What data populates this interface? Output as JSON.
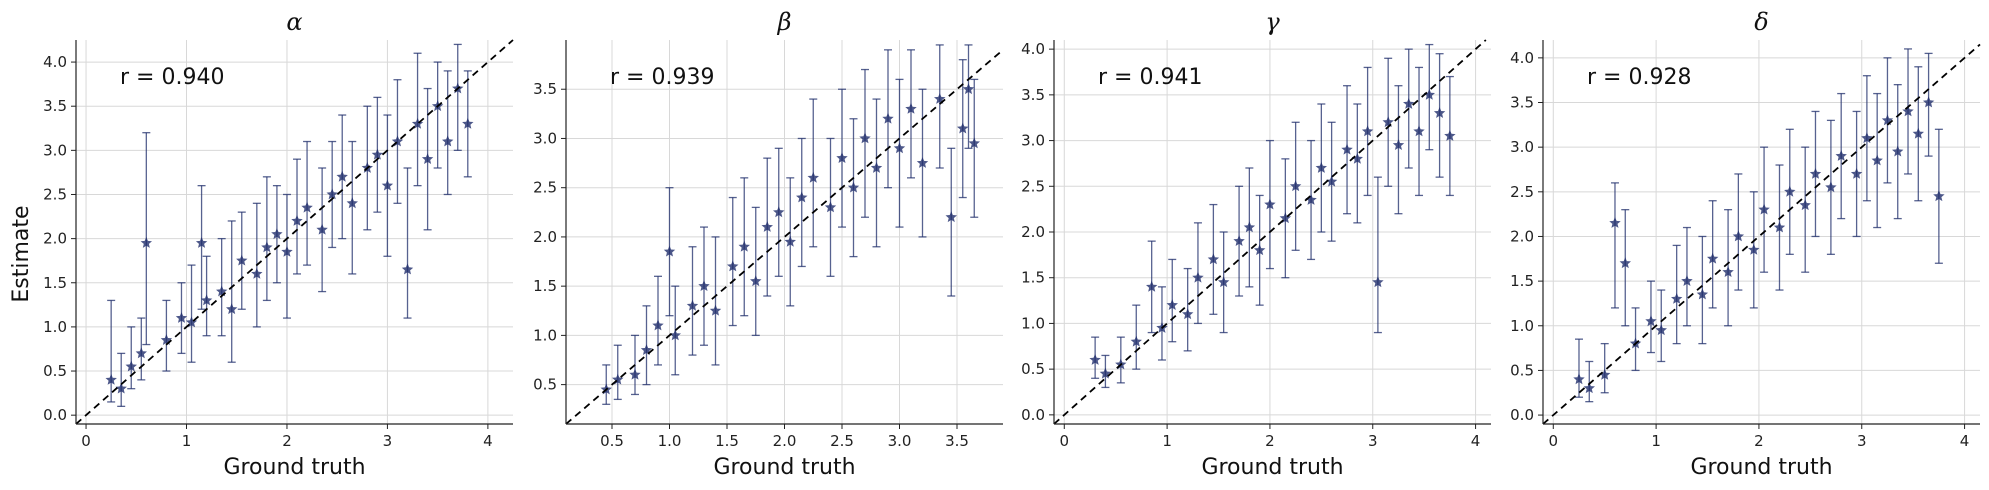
{
  "figure": {
    "ylabel": "Estimate",
    "xlabel": "Ground truth",
    "marker_color": "#1f2d6b",
    "diagonal_color": "#000000",
    "grid_color": "#d8d8d8"
  },
  "chart_data": [
    {
      "type": "scatter",
      "title": "α",
      "correlation_label": "r = 0.940",
      "xlabel": "Ground truth",
      "ylabel": "Estimate",
      "xlim": [
        -0.1,
        4.25
      ],
      "ylim": [
        -0.1,
        4.25
      ],
      "xticks": [
        "0",
        "1",
        "2",
        "3",
        "4"
      ],
      "yticks": [
        "0.0",
        "0.5",
        "1.0",
        "1.5",
        "2.0",
        "2.5",
        "3.0",
        "3.5",
        "4.0"
      ],
      "grid": true,
      "reference_line": "y = x (dashed)",
      "marker": "star with error bars",
      "points": [
        {
          "x": 0.25,
          "y": 0.4,
          "lo": 0.15,
          "hi": 1.3
        },
        {
          "x": 0.35,
          "y": 0.3,
          "lo": 0.1,
          "hi": 0.7
        },
        {
          "x": 0.45,
          "y": 0.55,
          "lo": 0.3,
          "hi": 1.0
        },
        {
          "x": 0.6,
          "y": 1.95,
          "lo": 0.8,
          "hi": 3.2
        },
        {
          "x": 0.55,
          "y": 0.7,
          "lo": 0.4,
          "hi": 1.1
        },
        {
          "x": 0.8,
          "y": 0.85,
          "lo": 0.5,
          "hi": 1.3
        },
        {
          "x": 0.95,
          "y": 1.1,
          "lo": 0.7,
          "hi": 1.5
        },
        {
          "x": 1.05,
          "y": 1.05,
          "lo": 0.6,
          "hi": 1.7
        },
        {
          "x": 1.15,
          "y": 1.95,
          "lo": 1.2,
          "hi": 2.6
        },
        {
          "x": 1.2,
          "y": 1.3,
          "lo": 0.9,
          "hi": 1.8
        },
        {
          "x": 1.35,
          "y": 1.4,
          "lo": 0.9,
          "hi": 2.0
        },
        {
          "x": 1.45,
          "y": 1.2,
          "lo": 0.6,
          "hi": 2.2
        },
        {
          "x": 1.55,
          "y": 1.75,
          "lo": 1.2,
          "hi": 2.3
        },
        {
          "x": 1.7,
          "y": 1.6,
          "lo": 1.0,
          "hi": 2.4
        },
        {
          "x": 1.8,
          "y": 1.9,
          "lo": 1.3,
          "hi": 2.7
        },
        {
          "x": 1.9,
          "y": 2.05,
          "lo": 1.5,
          "hi": 2.6
        },
        {
          "x": 2.0,
          "y": 1.85,
          "lo": 1.1,
          "hi": 2.5
        },
        {
          "x": 2.1,
          "y": 2.2,
          "lo": 1.6,
          "hi": 2.9
        },
        {
          "x": 2.2,
          "y": 2.35,
          "lo": 1.7,
          "hi": 3.1
        },
        {
          "x": 2.35,
          "y": 2.1,
          "lo": 1.4,
          "hi": 2.8
        },
        {
          "x": 2.45,
          "y": 2.5,
          "lo": 1.9,
          "hi": 3.1
        },
        {
          "x": 2.55,
          "y": 2.7,
          "lo": 2.0,
          "hi": 3.4
        },
        {
          "x": 2.65,
          "y": 2.4,
          "lo": 1.6,
          "hi": 3.1
        },
        {
          "x": 2.8,
          "y": 2.8,
          "lo": 2.1,
          "hi": 3.5
        },
        {
          "x": 2.9,
          "y": 2.95,
          "lo": 2.3,
          "hi": 3.6
        },
        {
          "x": 3.0,
          "y": 2.6,
          "lo": 1.8,
          "hi": 3.4
        },
        {
          "x": 3.1,
          "y": 3.1,
          "lo": 2.4,
          "hi": 3.8
        },
        {
          "x": 3.2,
          "y": 1.65,
          "lo": 1.1,
          "hi": 2.8
        },
        {
          "x": 3.3,
          "y": 3.3,
          "lo": 2.6,
          "hi": 4.1
        },
        {
          "x": 3.4,
          "y": 2.9,
          "lo": 2.1,
          "hi": 3.7
        },
        {
          "x": 3.5,
          "y": 3.5,
          "lo": 2.8,
          "hi": 4.0
        },
        {
          "x": 3.6,
          "y": 3.1,
          "lo": 2.5,
          "hi": 3.9
        },
        {
          "x": 3.7,
          "y": 3.7,
          "lo": 3.0,
          "hi": 4.2
        },
        {
          "x": 3.8,
          "y": 3.3,
          "lo": 2.7,
          "hi": 3.9
        }
      ]
    },
    {
      "type": "scatter",
      "title": "β",
      "correlation_label": "r = 0.939",
      "xlabel": "Ground truth",
      "ylabel": "",
      "xlim": [
        0.1,
        3.9
      ],
      "ylim": [
        0.1,
        4.0
      ],
      "xticks": [
        "0.5",
        "1.0",
        "1.5",
        "2.0",
        "2.5",
        "3.0",
        "3.5"
      ],
      "yticks": [
        "0.5",
        "1.0",
        "1.5",
        "2.0",
        "2.5",
        "3.0",
        "3.5"
      ],
      "grid": true,
      "reference_line": "y = x (dashed)",
      "marker": "star with error bars",
      "points": [
        {
          "x": 0.45,
          "y": 0.45,
          "lo": 0.3,
          "hi": 0.7
        },
        {
          "x": 0.55,
          "y": 0.55,
          "lo": 0.35,
          "hi": 0.9
        },
        {
          "x": 0.7,
          "y": 0.6,
          "lo": 0.4,
          "hi": 1.0
        },
        {
          "x": 0.8,
          "y": 0.85,
          "lo": 0.5,
          "hi": 1.3
        },
        {
          "x": 0.9,
          "y": 1.1,
          "lo": 0.7,
          "hi": 1.6
        },
        {
          "x": 1.0,
          "y": 1.85,
          "lo": 1.2,
          "hi": 2.5
        },
        {
          "x": 1.05,
          "y": 1.0,
          "lo": 0.6,
          "hi": 1.5
        },
        {
          "x": 1.2,
          "y": 1.3,
          "lo": 0.8,
          "hi": 1.9
        },
        {
          "x": 1.3,
          "y": 1.5,
          "lo": 0.9,
          "hi": 2.1
        },
        {
          "x": 1.4,
          "y": 1.25,
          "lo": 0.7,
          "hi": 2.0
        },
        {
          "x": 1.55,
          "y": 1.7,
          "lo": 1.1,
          "hi": 2.4
        },
        {
          "x": 1.65,
          "y": 1.9,
          "lo": 1.2,
          "hi": 2.6
        },
        {
          "x": 1.75,
          "y": 1.55,
          "lo": 1.0,
          "hi": 2.3
        },
        {
          "x": 1.85,
          "y": 2.1,
          "lo": 1.4,
          "hi": 2.8
        },
        {
          "x": 1.95,
          "y": 2.25,
          "lo": 1.6,
          "hi": 2.9
        },
        {
          "x": 2.05,
          "y": 1.95,
          "lo": 1.3,
          "hi": 2.6
        },
        {
          "x": 2.15,
          "y": 2.4,
          "lo": 1.7,
          "hi": 3.0
        },
        {
          "x": 2.25,
          "y": 2.6,
          "lo": 1.9,
          "hi": 3.4
        },
        {
          "x": 2.4,
          "y": 2.3,
          "lo": 1.6,
          "hi": 3.0
        },
        {
          "x": 2.5,
          "y": 2.8,
          "lo": 2.1,
          "hi": 3.5
        },
        {
          "x": 2.6,
          "y": 2.5,
          "lo": 1.8,
          "hi": 3.2
        },
        {
          "x": 2.7,
          "y": 3.0,
          "lo": 2.2,
          "hi": 3.7
        },
        {
          "x": 2.8,
          "y": 2.7,
          "lo": 1.9,
          "hi": 3.4
        },
        {
          "x": 2.9,
          "y": 3.2,
          "lo": 2.5,
          "hi": 3.9
        },
        {
          "x": 3.0,
          "y": 2.9,
          "lo": 2.1,
          "hi": 3.6
        },
        {
          "x": 3.1,
          "y": 3.3,
          "lo": 2.6,
          "hi": 3.9
        },
        {
          "x": 3.2,
          "y": 2.75,
          "lo": 2.0,
          "hi": 3.5
        },
        {
          "x": 3.35,
          "y": 3.4,
          "lo": 2.7,
          "hi": 3.95
        },
        {
          "x": 3.45,
          "y": 2.2,
          "lo": 1.4,
          "hi": 2.9
        },
        {
          "x": 3.55,
          "y": 3.1,
          "lo": 2.4,
          "hi": 3.8
        },
        {
          "x": 3.6,
          "y": 3.5,
          "lo": 2.9,
          "hi": 3.95
        },
        {
          "x": 3.65,
          "y": 2.95,
          "lo": 2.2,
          "hi": 3.6
        }
      ]
    },
    {
      "type": "scatter",
      "title": "γ",
      "correlation_label": "r = 0.941",
      "xlabel": "Ground truth",
      "ylabel": "",
      "xlim": [
        -0.1,
        4.15
      ],
      "ylim": [
        -0.1,
        4.1
      ],
      "xticks": [
        "0",
        "1",
        "2",
        "3",
        "4"
      ],
      "yticks": [
        "0.0",
        "0.5",
        "1.0",
        "1.5",
        "2.0",
        "2.5",
        "3.0",
        "3.5",
        "4.0"
      ],
      "grid": true,
      "reference_line": "y = x (dashed)",
      "marker": "star with error bars",
      "points": [
        {
          "x": 0.3,
          "y": 0.6,
          "lo": 0.4,
          "hi": 0.85
        },
        {
          "x": 0.4,
          "y": 0.45,
          "lo": 0.3,
          "hi": 0.65
        },
        {
          "x": 0.55,
          "y": 0.55,
          "lo": 0.35,
          "hi": 0.85
        },
        {
          "x": 0.7,
          "y": 0.8,
          "lo": 0.5,
          "hi": 1.2
        },
        {
          "x": 0.85,
          "y": 1.4,
          "lo": 0.9,
          "hi": 1.9
        },
        {
          "x": 0.95,
          "y": 0.95,
          "lo": 0.6,
          "hi": 1.4
        },
        {
          "x": 1.05,
          "y": 1.2,
          "lo": 0.8,
          "hi": 1.7
        },
        {
          "x": 1.2,
          "y": 1.1,
          "lo": 0.7,
          "hi": 1.6
        },
        {
          "x": 1.3,
          "y": 1.5,
          "lo": 1.0,
          "hi": 2.1
        },
        {
          "x": 1.45,
          "y": 1.7,
          "lo": 1.1,
          "hi": 2.3
        },
        {
          "x": 1.55,
          "y": 1.45,
          "lo": 0.9,
          "hi": 2.0
        },
        {
          "x": 1.7,
          "y": 1.9,
          "lo": 1.3,
          "hi": 2.5
        },
        {
          "x": 1.8,
          "y": 2.05,
          "lo": 1.4,
          "hi": 2.7
        },
        {
          "x": 1.9,
          "y": 1.8,
          "lo": 1.2,
          "hi": 2.4
        },
        {
          "x": 2.0,
          "y": 2.3,
          "lo": 1.6,
          "hi": 3.0
        },
        {
          "x": 2.15,
          "y": 2.15,
          "lo": 1.5,
          "hi": 2.8
        },
        {
          "x": 2.25,
          "y": 2.5,
          "lo": 1.8,
          "hi": 3.2
        },
        {
          "x": 2.4,
          "y": 2.35,
          "lo": 1.7,
          "hi": 3.0
        },
        {
          "x": 2.5,
          "y": 2.7,
          "lo": 2.0,
          "hi": 3.4
        },
        {
          "x": 2.6,
          "y": 2.55,
          "lo": 1.9,
          "hi": 3.2
        },
        {
          "x": 2.75,
          "y": 2.9,
          "lo": 2.2,
          "hi": 3.6
        },
        {
          "x": 2.85,
          "y": 2.8,
          "lo": 2.1,
          "hi": 3.4
        },
        {
          "x": 2.95,
          "y": 3.1,
          "lo": 2.4,
          "hi": 3.8
        },
        {
          "x": 3.05,
          "y": 1.45,
          "lo": 0.9,
          "hi": 2.6
        },
        {
          "x": 3.15,
          "y": 3.2,
          "lo": 2.5,
          "hi": 3.9
        },
        {
          "x": 3.25,
          "y": 2.95,
          "lo": 2.2,
          "hi": 3.6
        },
        {
          "x": 3.35,
          "y": 3.4,
          "lo": 2.7,
          "hi": 4.0
        },
        {
          "x": 3.45,
          "y": 3.1,
          "lo": 2.4,
          "hi": 3.8
        },
        {
          "x": 3.55,
          "y": 3.5,
          "lo": 2.9,
          "hi": 4.05
        },
        {
          "x": 3.65,
          "y": 3.3,
          "lo": 2.6,
          "hi": 3.95
        },
        {
          "x": 3.75,
          "y": 3.05,
          "lo": 2.4,
          "hi": 3.7
        }
      ]
    },
    {
      "type": "scatter",
      "title": "δ",
      "correlation_label": "r = 0.928",
      "xlabel": "Ground truth",
      "ylabel": "",
      "xlim": [
        -0.1,
        4.15
      ],
      "ylim": [
        -0.1,
        4.2
      ],
      "xticks": [
        "0",
        "1",
        "2",
        "3",
        "4"
      ],
      "yticks": [
        "0.0",
        "0.5",
        "1.0",
        "1.5",
        "2.0",
        "2.5",
        "3.0",
        "3.5",
        "4.0"
      ],
      "grid": true,
      "reference_line": "y = x (dashed)",
      "marker": "star with error bars",
      "points": [
        {
          "x": 0.25,
          "y": 0.4,
          "lo": 0.2,
          "hi": 0.85
        },
        {
          "x": 0.35,
          "y": 0.3,
          "lo": 0.15,
          "hi": 0.6
        },
        {
          "x": 0.5,
          "y": 0.45,
          "lo": 0.25,
          "hi": 0.8
        },
        {
          "x": 0.6,
          "y": 2.15,
          "lo": 1.2,
          "hi": 2.6
        },
        {
          "x": 0.7,
          "y": 1.7,
          "lo": 1.0,
          "hi": 2.3
        },
        {
          "x": 0.8,
          "y": 0.8,
          "lo": 0.5,
          "hi": 1.2
        },
        {
          "x": 0.95,
          "y": 1.05,
          "lo": 0.7,
          "hi": 1.5
        },
        {
          "x": 1.05,
          "y": 0.95,
          "lo": 0.6,
          "hi": 1.4
        },
        {
          "x": 1.2,
          "y": 1.3,
          "lo": 0.8,
          "hi": 1.9
        },
        {
          "x": 1.3,
          "y": 1.5,
          "lo": 1.0,
          "hi": 2.1
        },
        {
          "x": 1.45,
          "y": 1.35,
          "lo": 0.8,
          "hi": 2.0
        },
        {
          "x": 1.55,
          "y": 1.75,
          "lo": 1.2,
          "hi": 2.4
        },
        {
          "x": 1.7,
          "y": 1.6,
          "lo": 1.0,
          "hi": 2.3
        },
        {
          "x": 1.8,
          "y": 2.0,
          "lo": 1.4,
          "hi": 2.7
        },
        {
          "x": 1.95,
          "y": 1.85,
          "lo": 1.2,
          "hi": 2.5
        },
        {
          "x": 2.05,
          "y": 2.3,
          "lo": 1.6,
          "hi": 3.0
        },
        {
          "x": 2.2,
          "y": 2.1,
          "lo": 1.4,
          "hi": 2.8
        },
        {
          "x": 2.3,
          "y": 2.5,
          "lo": 1.8,
          "hi": 3.2
        },
        {
          "x": 2.45,
          "y": 2.35,
          "lo": 1.6,
          "hi": 3.0
        },
        {
          "x": 2.55,
          "y": 2.7,
          "lo": 2.0,
          "hi": 3.4
        },
        {
          "x": 2.7,
          "y": 2.55,
          "lo": 1.8,
          "hi": 3.3
        },
        {
          "x": 2.8,
          "y": 2.9,
          "lo": 2.2,
          "hi": 3.6
        },
        {
          "x": 2.95,
          "y": 2.7,
          "lo": 2.0,
          "hi": 3.4
        },
        {
          "x": 3.05,
          "y": 3.1,
          "lo": 2.4,
          "hi": 3.8
        },
        {
          "x": 3.15,
          "y": 2.85,
          "lo": 2.1,
          "hi": 3.6
        },
        {
          "x": 3.25,
          "y": 3.3,
          "lo": 2.6,
          "hi": 4.0
        },
        {
          "x": 3.35,
          "y": 2.95,
          "lo": 2.2,
          "hi": 3.7
        },
        {
          "x": 3.45,
          "y": 3.4,
          "lo": 2.7,
          "hi": 4.1
        },
        {
          "x": 3.55,
          "y": 3.15,
          "lo": 2.4,
          "hi": 3.9
        },
        {
          "x": 3.65,
          "y": 3.5,
          "lo": 2.9,
          "hi": 4.05
        },
        {
          "x": 3.75,
          "y": 2.45,
          "lo": 1.7,
          "hi": 3.2
        }
      ]
    }
  ]
}
